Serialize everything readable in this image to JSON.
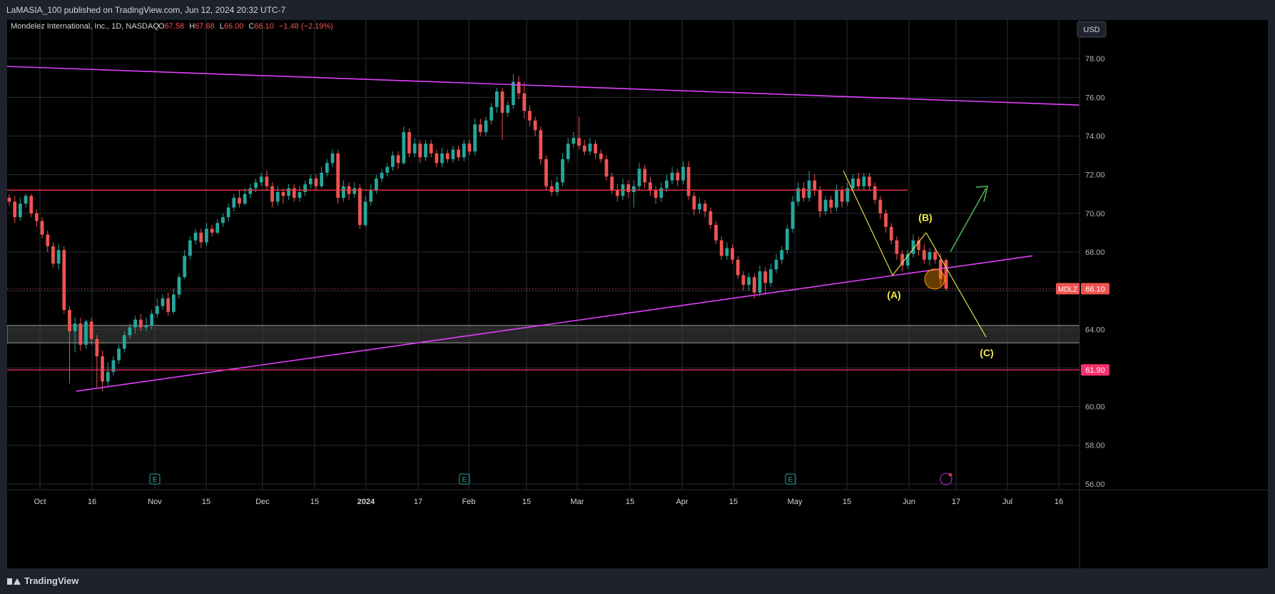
{
  "header": {
    "published_line": "LaMASIA_100 published on TradingView.com, Jun 12, 2024 20:32 UTC-7"
  },
  "legend": {
    "symbol_line": "Mondelez International, Inc., 1D, NASDAQ",
    "o_key": "O",
    "o_val": "67.58",
    "h_key": "H",
    "h_val": "67.68",
    "l_key": "L",
    "l_val": "66.00",
    "c_key": "C",
    "c_val": "66.10",
    "change": "−1.48 (−2.19%)"
  },
  "currency_button": "USD",
  "footer": {
    "brand": "TradingView"
  },
  "colors": {
    "up": "#26a69a",
    "down": "#ef5350",
    "magenta": "#e040fb",
    "red_line": "#f23645",
    "pink_line": "#f7306b",
    "yellow": "#f2e94e",
    "green_arrow": "#4caf50",
    "grid": "#2a2e39"
  },
  "chart_data": {
    "type": "candlestick",
    "symbol": "MDLZ",
    "interval": "1D",
    "ylim": [
      55.7,
      80.0
    ],
    "y_ticks": [
      "56.00",
      "58.00",
      "60.00",
      "62.00",
      "64.00",
      "66.00",
      "68.00",
      "70.00",
      "72.00",
      "74.00",
      "76.00",
      "78.00"
    ],
    "x_ticks": [
      "Oct",
      "16",
      "Nov",
      "15",
      "Dec",
      "15",
      "2024",
      "17",
      "Feb",
      "15",
      "Mar",
      "15",
      "Apr",
      "15",
      "May",
      "15",
      "Jun",
      "17",
      "Jul",
      "16"
    ],
    "price_badge": {
      "symbol": "MDLZ",
      "value": "66.10",
      "price": 66.1
    },
    "level_badge": {
      "value": "61.90",
      "price": 61.9
    },
    "earnings_markers": [
      "E",
      "E",
      "E"
    ],
    "wave_labels": {
      "a": "(A)",
      "b": "(B)",
      "c": "(C)"
    },
    "candles": [
      [
        70.8,
        70.6,
        71.0,
        70.4
      ],
      [
        70.6,
        69.8,
        70.9,
        69.5
      ],
      [
        69.8,
        70.5,
        70.8,
        69.6
      ],
      [
        70.5,
        70.9,
        71.0,
        70.3
      ],
      [
        70.9,
        70.0,
        71.0,
        69.8
      ],
      [
        70.0,
        69.6,
        70.2,
        69.3
      ],
      [
        69.6,
        68.9,
        69.8,
        68.7
      ],
      [
        68.9,
        68.3,
        69.1,
        68.0
      ],
      [
        68.3,
        67.4,
        68.5,
        67.2
      ],
      [
        67.4,
        68.1,
        68.4,
        67.1
      ],
      [
        68.1,
        65.0,
        68.3,
        64.8
      ],
      [
        65.0,
        63.9,
        65.2,
        61.2
      ],
      [
        63.9,
        64.3,
        64.6,
        62.8
      ],
      [
        64.3,
        63.2,
        64.6,
        62.9
      ],
      [
        63.2,
        64.4,
        64.5,
        63.0
      ],
      [
        64.4,
        63.5,
        64.6,
        63.2
      ],
      [
        63.5,
        62.6,
        63.7,
        61.0
      ],
      [
        62.6,
        61.3,
        62.9,
        60.8
      ],
      [
        61.3,
        61.8,
        62.3,
        61.1
      ],
      [
        61.8,
        62.4,
        62.6,
        61.6
      ],
      [
        62.4,
        63.0,
        63.2,
        62.2
      ],
      [
        63.0,
        63.7,
        63.9,
        62.8
      ],
      [
        63.7,
        64.1,
        64.3,
        63.5
      ],
      [
        64.1,
        64.5,
        64.7,
        63.8
      ],
      [
        64.5,
        64.1,
        64.8,
        63.9
      ],
      [
        64.1,
        64.2,
        64.6,
        63.9
      ],
      [
        64.2,
        64.8,
        65.0,
        64.0
      ],
      [
        64.8,
        65.2,
        65.6,
        64.6
      ],
      [
        65.2,
        65.6,
        65.8,
        65.0
      ],
      [
        65.6,
        64.9,
        65.9,
        64.7
      ],
      [
        64.9,
        65.8,
        66.1,
        64.8
      ],
      [
        65.8,
        66.7,
        66.9,
        65.6
      ],
      [
        66.7,
        67.8,
        68.1,
        66.6
      ],
      [
        67.8,
        68.6,
        68.8,
        67.6
      ],
      [
        68.6,
        69.0,
        69.2,
        68.4
      ],
      [
        69.0,
        68.5,
        69.2,
        68.2
      ],
      [
        68.5,
        69.2,
        69.5,
        68.3
      ],
      [
        69.2,
        69.0,
        69.4,
        68.8
      ],
      [
        69.0,
        69.5,
        69.7,
        68.9
      ],
      [
        69.5,
        69.8,
        70.0,
        69.3
      ],
      [
        69.8,
        70.3,
        70.5,
        69.6
      ],
      [
        70.3,
        70.8,
        71.0,
        70.1
      ],
      [
        70.8,
        70.5,
        71.2,
        70.3
      ],
      [
        70.5,
        71.0,
        71.3,
        70.4
      ],
      [
        71.0,
        71.3,
        71.5,
        70.8
      ],
      [
        71.3,
        71.6,
        71.8,
        71.1
      ],
      [
        71.6,
        71.9,
        72.1,
        71.4
      ],
      [
        71.9,
        71.4,
        72.2,
        71.2
      ],
      [
        71.4,
        70.6,
        71.6,
        70.3
      ],
      [
        70.6,
        71.1,
        71.4,
        70.4
      ],
      [
        71.1,
        70.9,
        71.3,
        70.5
      ],
      [
        70.9,
        71.3,
        71.5,
        70.7
      ],
      [
        71.3,
        70.8,
        71.5,
        70.6
      ],
      [
        70.8,
        71.1,
        71.4,
        70.6
      ],
      [
        71.1,
        71.5,
        71.7,
        70.9
      ],
      [
        71.5,
        71.8,
        72.0,
        71.3
      ],
      [
        71.8,
        71.4,
        72.0,
        71.2
      ],
      [
        71.4,
        72.1,
        72.4,
        71.3
      ],
      [
        72.1,
        72.6,
        72.8,
        71.9
      ],
      [
        72.6,
        73.1,
        73.3,
        72.4
      ],
      [
        73.1,
        70.8,
        73.3,
        70.5
      ],
      [
        70.8,
        71.4,
        71.7,
        70.6
      ],
      [
        71.4,
        71.0,
        71.6,
        70.7
      ],
      [
        71.0,
        71.3,
        71.6,
        70.8
      ],
      [
        71.3,
        69.4,
        71.5,
        69.2
      ],
      [
        69.4,
        70.6,
        70.9,
        69.3
      ],
      [
        70.6,
        71.2,
        71.5,
        70.4
      ],
      [
        71.2,
        71.8,
        72.0,
        71.0
      ],
      [
        71.8,
        72.1,
        72.3,
        71.6
      ],
      [
        72.1,
        72.4,
        72.6,
        71.9
      ],
      [
        72.4,
        73.0,
        73.2,
        72.2
      ],
      [
        73.0,
        72.6,
        73.2,
        72.3
      ],
      [
        72.6,
        74.2,
        74.5,
        72.5
      ],
      [
        74.2,
        73.1,
        74.4,
        72.9
      ],
      [
        73.1,
        73.6,
        73.9,
        72.9
      ],
      [
        73.6,
        72.9,
        73.8,
        72.6
      ],
      [
        72.9,
        73.6,
        73.8,
        72.7
      ],
      [
        73.6,
        73.1,
        73.8,
        72.9
      ],
      [
        73.1,
        72.6,
        73.3,
        72.4
      ],
      [
        72.6,
        73.1,
        73.4,
        72.4
      ],
      [
        73.1,
        72.8,
        73.3,
        72.6
      ],
      [
        72.8,
        73.3,
        73.5,
        72.6
      ],
      [
        73.3,
        72.9,
        73.5,
        72.7
      ],
      [
        72.9,
        73.6,
        73.8,
        72.7
      ],
      [
        73.6,
        73.2,
        73.8,
        73.0
      ],
      [
        73.2,
        74.6,
        74.9,
        73.0
      ],
      [
        74.6,
        74.2,
        74.9,
        74.0
      ],
      [
        74.2,
        74.8,
        75.0,
        74.0
      ],
      [
        74.8,
        75.5,
        75.7,
        74.6
      ],
      [
        75.5,
        76.3,
        76.5,
        75.2
      ],
      [
        76.3,
        75.2,
        76.5,
        73.8
      ],
      [
        75.2,
        75.6,
        75.8,
        75.0
      ],
      [
        75.6,
        76.8,
        77.2,
        75.4
      ],
      [
        76.8,
        76.2,
        77.1,
        75.9
      ],
      [
        76.2,
        75.3,
        76.8,
        74.9
      ],
      [
        75.3,
        74.8,
        75.6,
        74.5
      ],
      [
        74.8,
        74.3,
        75.0,
        74.0
      ],
      [
        74.3,
        72.8,
        74.5,
        72.5
      ],
      [
        72.8,
        71.4,
        73.0,
        71.2
      ],
      [
        71.4,
        71.1,
        71.7,
        70.9
      ],
      [
        71.1,
        71.6,
        71.9,
        70.9
      ],
      [
        71.6,
        72.8,
        73.1,
        71.4
      ],
      [
        72.8,
        73.6,
        73.9,
        72.6
      ],
      [
        73.6,
        73.9,
        74.2,
        73.4
      ],
      [
        73.9,
        73.5,
        75.0,
        73.3
      ],
      [
        73.5,
        73.2,
        73.8,
        73.0
      ],
      [
        73.2,
        73.6,
        73.9,
        73.0
      ],
      [
        73.6,
        73.1,
        73.8,
        72.8
      ],
      [
        73.1,
        72.8,
        73.3,
        72.6
      ],
      [
        72.8,
        71.9,
        73.0,
        71.7
      ],
      [
        71.9,
        71.2,
        72.1,
        71.0
      ],
      [
        71.2,
        70.9,
        71.5,
        70.6
      ],
      [
        70.9,
        71.5,
        71.8,
        70.7
      ],
      [
        71.5,
        71.1,
        71.7,
        70.8
      ],
      [
        71.1,
        71.4,
        71.7,
        70.3
      ],
      [
        71.4,
        72.3,
        72.6,
        71.2
      ],
      [
        72.3,
        71.6,
        72.5,
        71.3
      ],
      [
        71.6,
        71.2,
        71.9,
        70.9
      ],
      [
        71.2,
        70.8,
        71.4,
        70.5
      ],
      [
        70.8,
        71.3,
        71.6,
        70.6
      ],
      [
        71.3,
        71.7,
        72.0,
        71.1
      ],
      [
        71.7,
        72.1,
        72.4,
        71.5
      ],
      [
        72.1,
        71.7,
        72.3,
        71.4
      ],
      [
        71.7,
        72.4,
        72.7,
        71.5
      ],
      [
        72.4,
        70.9,
        72.7,
        70.7
      ],
      [
        70.9,
        70.2,
        71.1,
        69.9
      ],
      [
        70.2,
        70.5,
        70.8,
        70.0
      ],
      [
        70.5,
        70.1,
        70.7,
        69.8
      ],
      [
        70.1,
        69.4,
        70.3,
        69.2
      ],
      [
        69.4,
        68.6,
        69.6,
        68.4
      ],
      [
        68.6,
        67.8,
        68.8,
        67.6
      ],
      [
        67.8,
        68.2,
        68.5,
        67.6
      ],
      [
        68.2,
        67.6,
        68.4,
        67.4
      ],
      [
        67.6,
        66.8,
        67.8,
        66.6
      ],
      [
        66.8,
        66.3,
        67.0,
        66.0
      ],
      [
        66.3,
        66.7,
        66.9,
        66.0
      ],
      [
        66.7,
        65.9,
        66.9,
        65.6
      ],
      [
        65.9,
        67.0,
        67.3,
        65.7
      ],
      [
        67.0,
        66.4,
        67.2,
        65.8
      ],
      [
        66.4,
        67.1,
        67.4,
        66.2
      ],
      [
        67.1,
        67.6,
        67.9,
        66.9
      ],
      [
        67.6,
        68.1,
        68.3,
        67.4
      ],
      [
        68.1,
        69.2,
        69.4,
        67.9
      ],
      [
        69.2,
        70.6,
        70.9,
        69.0
      ],
      [
        70.6,
        71.3,
        71.6,
        70.4
      ],
      [
        71.3,
        70.8,
        71.6,
        70.6
      ],
      [
        70.8,
        71.7,
        72.2,
        70.6
      ],
      [
        71.7,
        71.2,
        72.0,
        70.9
      ],
      [
        71.2,
        70.1,
        71.4,
        69.8
      ],
      [
        70.1,
        70.7,
        70.9,
        69.9
      ],
      [
        70.7,
        70.3,
        70.9,
        70.0
      ],
      [
        70.3,
        71.2,
        71.5,
        70.1
      ],
      [
        71.2,
        70.6,
        71.4,
        70.3
      ],
      [
        70.6,
        71.3,
        71.6,
        70.4
      ],
      [
        71.3,
        71.8,
        72.0,
        71.1
      ],
      [
        71.8,
        71.4,
        72.1,
        71.2
      ],
      [
        71.4,
        71.9,
        72.1,
        71.2
      ],
      [
        71.9,
        71.4,
        72.1,
        71.2
      ],
      [
        71.4,
        70.7,
        71.6,
        70.5
      ],
      [
        70.7,
        70.0,
        70.9,
        69.7
      ],
      [
        70.0,
        69.3,
        70.2,
        69.0
      ],
      [
        69.3,
        68.6,
        69.5,
        68.4
      ],
      [
        68.6,
        67.9,
        68.8,
        67.6
      ],
      [
        67.9,
        67.3,
        68.1,
        67.0
      ],
      [
        67.3,
        67.9,
        68.1,
        67.1
      ],
      [
        67.9,
        68.6,
        68.9,
        67.7
      ],
      [
        68.6,
        68.1,
        68.8,
        67.8
      ],
      [
        68.1,
        67.6,
        68.4,
        67.4
      ],
      [
        67.6,
        68.0,
        68.2,
        67.3
      ],
      [
        68.0,
        67.6,
        68.2,
        67.4
      ],
      [
        67.6,
        66.6,
        67.9,
        66.3
      ],
      [
        67.58,
        66.1,
        67.68,
        66.0
      ]
    ]
  }
}
